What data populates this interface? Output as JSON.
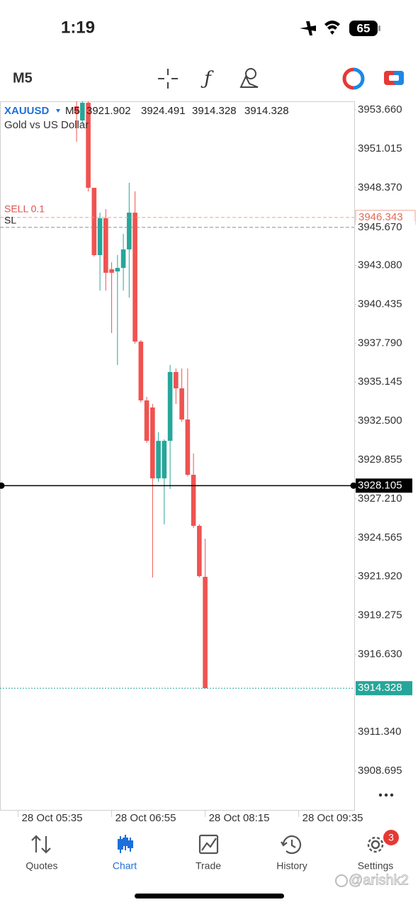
{
  "status_bar": {
    "time": "1:19",
    "battery": "65"
  },
  "toolbar": {
    "timeframe": "M5"
  },
  "chart_data": {
    "type": "candlestick",
    "symbol": "XAUUSD",
    "timeframe": "M5",
    "description": "Gold vs US Dollar",
    "up_color": "#26a69a",
    "down_color": "#ef5350",
    "candles": [
      {
        "open": 3953.9,
        "high": 3954.24,
        "low": 3951.49,
        "close": 3953.42
      },
      {
        "open": 3952.94,
        "high": 3954.24,
        "low": 3952.7,
        "close": 3954.14
      },
      {
        "open": 3954.14,
        "high": 3954.24,
        "low": 3948.12,
        "close": 3948.36
      },
      {
        "open": 3948.36,
        "high": 3948.36,
        "low": 3943.68,
        "close": 3943.78
      },
      {
        "open": 3943.78,
        "high": 3946.67,
        "low": 3941.37,
        "close": 3946.29
      },
      {
        "open": 3946.29,
        "high": 3946.91,
        "low": 3941.37,
        "close": 3942.58
      },
      {
        "open": 3942.82,
        "high": 3943.3,
        "low": 3938.48,
        "close": 3942.58
      },
      {
        "open": 3942.67,
        "high": 3943.78,
        "low": 3936.31,
        "close": 3942.91
      },
      {
        "open": 3942.91,
        "high": 3945.23,
        "low": 3941.37,
        "close": 3944.17
      },
      {
        "open": 3944.17,
        "high": 3948.7,
        "low": 3940.89,
        "close": 3946.67
      },
      {
        "open": 3946.67,
        "high": 3948.12,
        "low": 3937.76,
        "close": 3937.9
      },
      {
        "open": 3937.9,
        "high": 3938.0,
        "low": 3933.76,
        "close": 3933.9
      },
      {
        "open": 3933.9,
        "high": 3934.14,
        "low": 3931.01,
        "close": 3931.15
      },
      {
        "open": 3933.42,
        "high": 3933.66,
        "low": 3921.85,
        "close": 3928.6
      },
      {
        "open": 3928.6,
        "high": 3931.73,
        "low": 3928.36,
        "close": 3931.15
      },
      {
        "open": 3928.6,
        "high": 3931.25,
        "low": 3925.47,
        "close": 3931.15
      },
      {
        "open": 3931.15,
        "high": 3936.31,
        "low": 3927.88,
        "close": 3935.83
      },
      {
        "open": 3935.83,
        "high": 3936.07,
        "low": 3933.66,
        "close": 3934.72
      },
      {
        "open": 3934.72,
        "high": 3936.07,
        "low": 3932.45,
        "close": 3932.6
      },
      {
        "open": 3932.6,
        "high": 3936.07,
        "low": 3928.74,
        "close": 3928.84
      },
      {
        "open": 3928.84,
        "high": 3930.29,
        "low": 3925.23,
        "close": 3925.37
      },
      {
        "open": 3925.37,
        "high": 3925.47,
        "low": 3921.85,
        "close": 3921.95
      },
      {
        "open": 3921.902,
        "high": 3924.491,
        "low": 3914.328,
        "close": 3914.328
      }
    ],
    "ylim": [
      3906.05,
      3954.24
    ],
    "yticks": [
      {
        "value": 3953.66,
        "label": "3953.660"
      },
      3951.015,
      {
        "value": 3948.37,
        "label": "3948.370"
      },
      {
        "value": 3943.08,
        "label": "3943.080"
      },
      3940.435,
      {
        "value": 3937.79,
        "label": "3937.790"
      },
      3935.145,
      {
        "value": 3932.5,
        "label": "3932.500"
      },
      3929.855,
      {
        "value": 3927.21,
        "label": "3927.210"
      },
      3924.565,
      {
        "value": 3921.92,
        "label": "3921.920"
      },
      3919.275,
      {
        "value": 3916.63,
        "label": "3916.630"
      },
      {
        "value": 3911.34,
        "label": "3911.340"
      },
      3908.695
    ],
    "xlim": [
      -13.1,
      47.5
    ],
    "xticks": [
      {
        "value": -10,
        "label": "28 Oct 05:35"
      },
      {
        "value": 6,
        "label": "28 Oct 06:55"
      },
      {
        "value": 22,
        "label": "28 Oct 08:15"
      },
      {
        "value": 38,
        "label": "28 Oct 09:35"
      }
    ],
    "price_lines": [
      {
        "name": "SELL 0.1",
        "price": 3946.343,
        "color": "#f0a090",
        "style": "sell"
      },
      {
        "name": "SL",
        "price": 3945.67,
        "price_label": "3945.670",
        "color": "#8a8a8a",
        "style": "sl"
      },
      {
        "price": 3928.105,
        "color": "#000000",
        "style": "cursor"
      },
      {
        "price": 3914.328,
        "color": "#26a69a",
        "style": "bid"
      }
    ]
  },
  "nav": {
    "items": [
      "Quotes",
      "Chart",
      "Trade",
      "History",
      "Settings"
    ],
    "active": 1,
    "badge": "3"
  },
  "watermark": "@arishk2"
}
